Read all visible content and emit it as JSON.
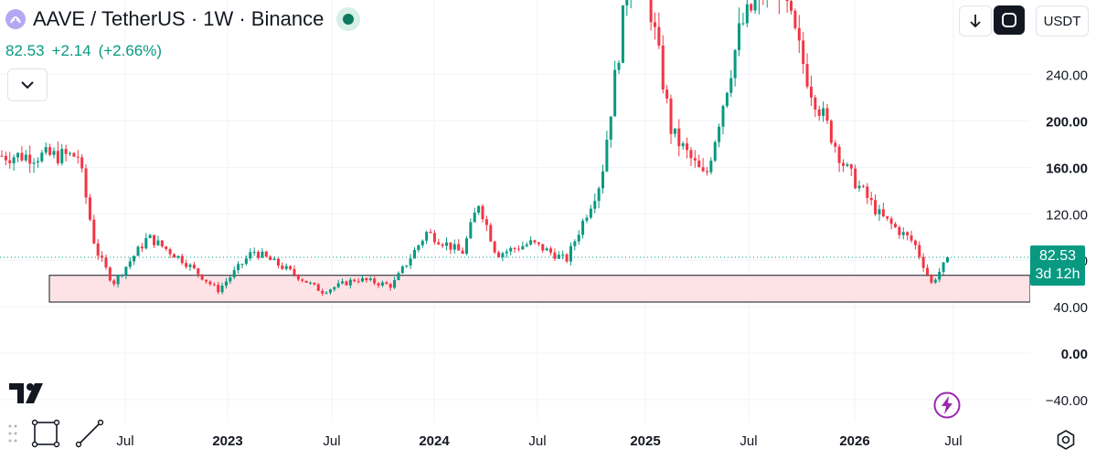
{
  "header": {
    "title": "AAVE / TetherUS · 1W · Binance",
    "price": "82.53",
    "change": "+2.14",
    "change_pct": "(+2.66%)"
  },
  "toolbar": {
    "currency": "USDT"
  },
  "price_tag": {
    "value": "82.53",
    "countdown": "3d 12h"
  },
  "colors": {
    "up": "#089981",
    "down": "#f23645",
    "zone_fill": "#fde3e6",
    "accent_purple": "#9c27b0"
  },
  "icons": [
    "aave-coin-icon",
    "live-status-icon",
    "chevron-down-icon",
    "download-icon",
    "fullscreen-icon",
    "tradingview-logo-icon",
    "drag-handle-icon",
    "rectangle-tool-icon",
    "trendline-tool-icon",
    "lightning-icon",
    "settings-icon"
  ],
  "chart_data": {
    "type": "candlestick",
    "timeframe": "1W",
    "y_axis_ticks": [
      240,
      200,
      160,
      120,
      80,
      40,
      0,
      -40
    ],
    "y_axis_tick_labels": [
      "240.00",
      "200.00",
      "160.00",
      "120.00",
      "80.00",
      "40.00",
      "0.00",
      "−40.00"
    ],
    "x_axis_tick_labels": [
      "Jul",
      "2023",
      "Jul",
      "2024",
      "Jul",
      "2025",
      "Jul",
      "2026",
      "Jul"
    ],
    "last_price": 82.53,
    "support_zone": [
      44,
      67
    ],
    "grid": true,
    "segments": [
      {
        "date": "2022-04",
        "close": 170
      },
      {
        "date": "2022-05",
        "close": 90
      },
      {
        "date": "2022-06",
        "close": 60
      },
      {
        "date": "2022-08",
        "close": 100
      },
      {
        "date": "2022-10",
        "close": 80
      },
      {
        "date": "2022-12",
        "close": 54
      },
      {
        "date": "2023-02",
        "close": 88
      },
      {
        "date": "2023-04",
        "close": 72
      },
      {
        "date": "2023-06",
        "close": 53
      },
      {
        "date": "2023-08",
        "close": 64
      },
      {
        "date": "2023-10",
        "close": 58
      },
      {
        "date": "2023-12",
        "close": 104
      },
      {
        "date": "2024-02",
        "close": 86
      },
      {
        "date": "2024-03",
        "close": 130
      },
      {
        "date": "2024-04",
        "close": 85
      },
      {
        "date": "2024-06",
        "close": 95
      },
      {
        "date": "2024-08",
        "close": 80
      },
      {
        "date": "2024-10",
        "close": 150
      },
      {
        "date": "2024-12",
        "close": 370
      },
      {
        "date": "2025-02",
        "close": 190
      },
      {
        "date": "2025-04",
        "close": 150
      },
      {
        "date": "2025-06",
        "close": 280
      },
      {
        "date": "2025-08",
        "close": 330
      },
      {
        "date": "2025-10",
        "close": 230
      },
      {
        "date": "2025-12",
        "close": 160
      },
      {
        "date": "2026-02",
        "close": 118
      },
      {
        "date": "2026-04",
        "close": 95
      },
      {
        "date": "2026-05",
        "close": 60
      },
      {
        "date": "2026-06",
        "close": 82.53
      }
    ]
  }
}
